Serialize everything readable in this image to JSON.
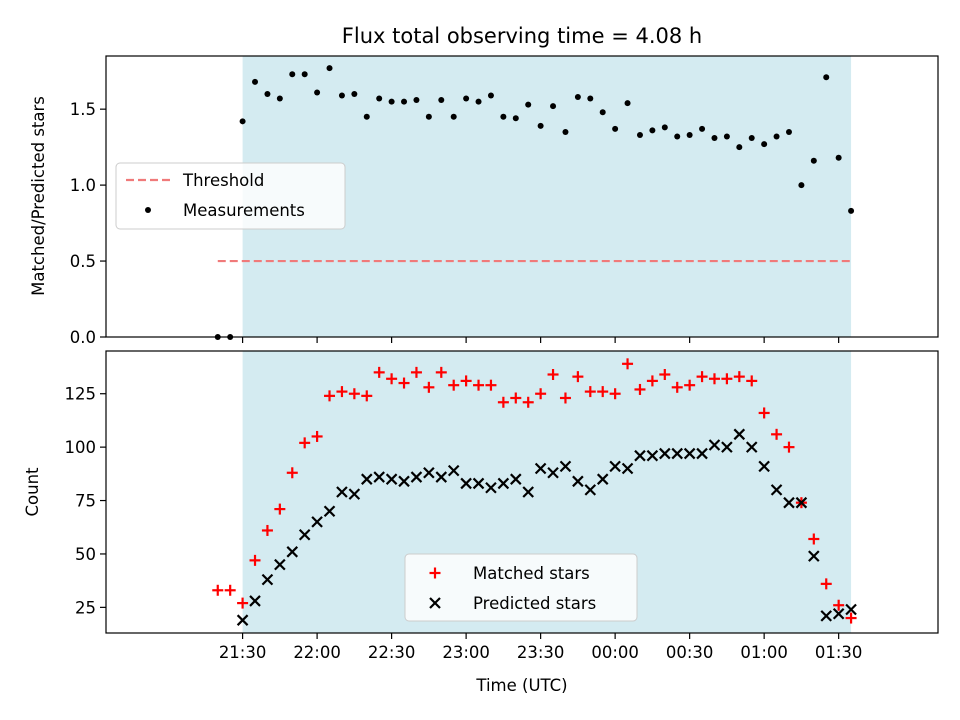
{
  "title": "Flux total observing time = 4.08 h",
  "colors": {
    "shade": "#d4ebf1",
    "threshold": "#f07a7a",
    "measurements": "#000000",
    "matched": "#ff0000",
    "predicted": "#000000"
  },
  "top_legend": {
    "threshold_label": "Threshold",
    "measurements_label": "Measurements",
    "placement": "center-left"
  },
  "bottom_legend": {
    "matched_label": "Matched stars",
    "predicted_label": "Predicted stars",
    "placement": "lower-center"
  },
  "chart_data": [
    {
      "type": "scatter",
      "panel": "top",
      "title": "Flux total observing time = 4.08 h",
      "xlabel": "",
      "ylabel": "Matched/Predicted stars",
      "x_unit": "minutes after 00:00 UTC on first night (values >= 1440 are next day)",
      "xlim": [
        1235,
        1570
      ],
      "ylim": [
        0,
        1.85
      ],
      "yticks": [
        0.0,
        0.5,
        1.0,
        1.5
      ],
      "ytick_labels": [
        "0.0",
        "0.5",
        "1.0",
        "1.5"
      ],
      "shaded_span": [
        1290,
        1535
      ],
      "threshold": {
        "name": "Threshold",
        "value": 0.5,
        "x_range": [
          1280,
          1535
        ]
      },
      "series": [
        {
          "name": "Measurements",
          "points": [
            [
              1280,
              0.0
            ],
            [
              1285,
              0.0
            ],
            [
              1290,
              1.42
            ],
            [
              1295,
              1.68
            ],
            [
              1300,
              1.6
            ],
            [
              1305,
              1.57
            ],
            [
              1310,
              1.73
            ],
            [
              1315,
              1.73
            ],
            [
              1320,
              1.61
            ],
            [
              1325,
              1.77
            ],
            [
              1330,
              1.59
            ],
            [
              1335,
              1.6
            ],
            [
              1340,
              1.45
            ],
            [
              1345,
              1.57
            ],
            [
              1350,
              1.55
            ],
            [
              1355,
              1.55
            ],
            [
              1360,
              1.56
            ],
            [
              1365,
              1.45
            ],
            [
              1370,
              1.56
            ],
            [
              1375,
              1.45
            ],
            [
              1380,
              1.57
            ],
            [
              1385,
              1.55
            ],
            [
              1390,
              1.59
            ],
            [
              1395,
              1.45
            ],
            [
              1400,
              1.44
            ],
            [
              1405,
              1.53
            ],
            [
              1410,
              1.39
            ],
            [
              1415,
              1.52
            ],
            [
              1420,
              1.35
            ],
            [
              1425,
              1.58
            ],
            [
              1430,
              1.57
            ],
            [
              1435,
              1.48
            ],
            [
              1440,
              1.37
            ],
            [
              1445,
              1.54
            ],
            [
              1450,
              1.33
            ],
            [
              1455,
              1.36
            ],
            [
              1460,
              1.38
            ],
            [
              1465,
              1.32
            ],
            [
              1470,
              1.33
            ],
            [
              1475,
              1.37
            ],
            [
              1480,
              1.31
            ],
            [
              1485,
              1.32
            ],
            [
              1490,
              1.25
            ],
            [
              1495,
              1.31
            ],
            [
              1500,
              1.27
            ],
            [
              1505,
              1.32
            ],
            [
              1510,
              1.35
            ],
            [
              1515,
              1.0
            ],
            [
              1520,
              1.16
            ],
            [
              1525,
              1.71
            ],
            [
              1530,
              1.18
            ],
            [
              1535,
              0.83
            ]
          ]
        }
      ]
    },
    {
      "type": "scatter",
      "panel": "bottom",
      "xlabel": "Time (UTC)",
      "ylabel": "Count",
      "x_unit": "minutes after 00:00 UTC on first night (values >= 1440 are next day)",
      "xlim": [
        1235,
        1570
      ],
      "ylim": [
        13,
        145
      ],
      "yticks": [
        25,
        50,
        75,
        100,
        125
      ],
      "ytick_labels": [
        "25",
        "50",
        "75",
        "100",
        "125"
      ],
      "xticks": [
        1290,
        1320,
        1350,
        1380,
        1410,
        1440,
        1470,
        1500,
        1530
      ],
      "xtick_labels": [
        "21:30",
        "22:00",
        "22:30",
        "23:00",
        "23:30",
        "00:00",
        "00:30",
        "01:00",
        "01:30"
      ],
      "shaded_span": [
        1290,
        1535
      ],
      "series": [
        {
          "name": "Matched stars",
          "points": [
            [
              1280,
              33
            ],
            [
              1285,
              33
            ],
            [
              1290,
              27
            ],
            [
              1295,
              47
            ],
            [
              1300,
              61
            ],
            [
              1305,
              71
            ],
            [
              1310,
              88
            ],
            [
              1315,
              102
            ],
            [
              1320,
              105
            ],
            [
              1325,
              124
            ],
            [
              1330,
              126
            ],
            [
              1335,
              125
            ],
            [
              1340,
              124
            ],
            [
              1345,
              135
            ],
            [
              1350,
              132
            ],
            [
              1355,
              130
            ],
            [
              1360,
              135
            ],
            [
              1365,
              128
            ],
            [
              1370,
              135
            ],
            [
              1375,
              129
            ],
            [
              1380,
              131
            ],
            [
              1385,
              129
            ],
            [
              1390,
              129
            ],
            [
              1395,
              121
            ],
            [
              1400,
              123
            ],
            [
              1405,
              121
            ],
            [
              1410,
              125
            ],
            [
              1415,
              134
            ],
            [
              1420,
              123
            ],
            [
              1425,
              133
            ],
            [
              1430,
              126
            ],
            [
              1435,
              126
            ],
            [
              1440,
              125
            ],
            [
              1445,
              139
            ],
            [
              1450,
              127
            ],
            [
              1455,
              131
            ],
            [
              1460,
              134
            ],
            [
              1465,
              128
            ],
            [
              1470,
              129
            ],
            [
              1475,
              133
            ],
            [
              1480,
              132
            ],
            [
              1485,
              132
            ],
            [
              1490,
              133
            ],
            [
              1495,
              131
            ],
            [
              1500,
              116
            ],
            [
              1505,
              106
            ],
            [
              1510,
              100
            ],
            [
              1515,
              74
            ],
            [
              1520,
              57
            ],
            [
              1525,
              36
            ],
            [
              1530,
              26
            ],
            [
              1535,
              20
            ]
          ]
        },
        {
          "name": "Predicted stars",
          "points": [
            [
              1290,
              19
            ],
            [
              1295,
              28
            ],
            [
              1300,
              38
            ],
            [
              1305,
              45
            ],
            [
              1310,
              51
            ],
            [
              1315,
              59
            ],
            [
              1320,
              65
            ],
            [
              1325,
              70
            ],
            [
              1330,
              79
            ],
            [
              1335,
              78
            ],
            [
              1340,
              85
            ],
            [
              1345,
              86
            ],
            [
              1350,
              85
            ],
            [
              1355,
              84
            ],
            [
              1360,
              86
            ],
            [
              1365,
              88
            ],
            [
              1370,
              86
            ],
            [
              1375,
              89
            ],
            [
              1380,
              83
            ],
            [
              1385,
              83
            ],
            [
              1390,
              81
            ],
            [
              1395,
              83
            ],
            [
              1400,
              85
            ],
            [
              1405,
              79
            ],
            [
              1410,
              90
            ],
            [
              1415,
              88
            ],
            [
              1420,
              91
            ],
            [
              1425,
              84
            ],
            [
              1430,
              80
            ],
            [
              1435,
              85
            ],
            [
              1440,
              91
            ],
            [
              1445,
              90
            ],
            [
              1450,
              96
            ],
            [
              1455,
              96
            ],
            [
              1460,
              97
            ],
            [
              1465,
              97
            ],
            [
              1470,
              97
            ],
            [
              1475,
              97
            ],
            [
              1480,
              101
            ],
            [
              1485,
              100
            ],
            [
              1490,
              106
            ],
            [
              1495,
              100
            ],
            [
              1500,
              91
            ],
            [
              1505,
              80
            ],
            [
              1510,
              74
            ],
            [
              1515,
              74
            ],
            [
              1520,
              49
            ],
            [
              1525,
              21
            ],
            [
              1530,
              22
            ],
            [
              1535,
              24
            ]
          ]
        }
      ]
    }
  ]
}
